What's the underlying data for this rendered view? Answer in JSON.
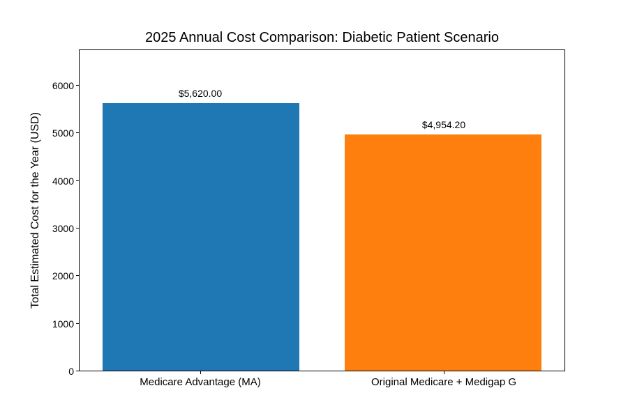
{
  "chart_data": {
    "type": "bar",
    "title": "2025 Annual Cost Comparison: Diabetic Patient Scenario",
    "xlabel": "",
    "ylabel": "Total Estimated Cost for the Year (USD)",
    "categories": [
      "Medicare Advantage (MA)",
      "Original Medicare + Medigap G"
    ],
    "values": [
      5620,
      4954.2
    ],
    "value_labels": [
      "$5,620.00",
      "$4,954.20"
    ],
    "bar_colors": [
      "#1f77b4",
      "#ff7f0e"
    ],
    "yticks": [
      0,
      1000,
      2000,
      3000,
      4000,
      5000,
      6000
    ],
    "ylim": [
      0,
      6760
    ],
    "grid": false,
    "legend": "none",
    "background_color": "#ffffff",
    "text_color": "#000000",
    "spine_color": "#000000"
  }
}
